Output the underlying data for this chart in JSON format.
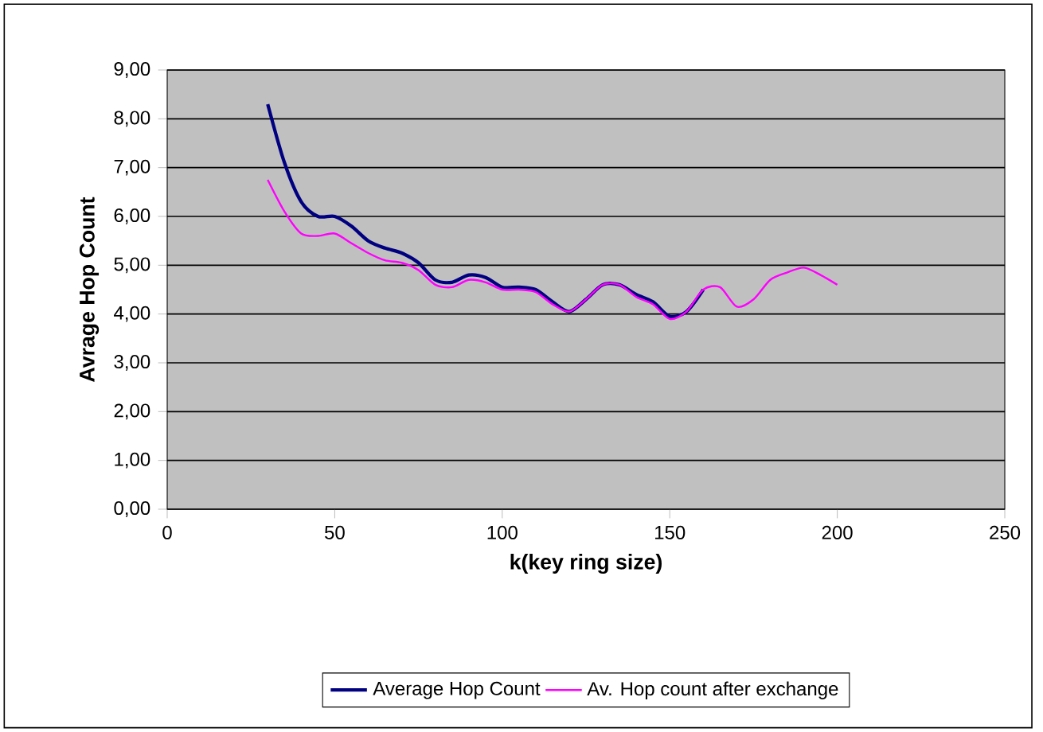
{
  "chart_data": {
    "type": "line",
    "xlabel": "k(key ring size)",
    "ylabel": "Avrage Hop Count",
    "x": [
      30,
      35,
      40,
      45,
      50,
      55,
      60,
      65,
      70,
      75,
      80,
      85,
      90,
      95,
      100,
      105,
      110,
      115,
      120,
      125,
      130,
      135,
      140,
      145,
      150,
      155,
      160,
      165,
      170,
      175,
      180,
      185,
      190,
      195,
      200
    ],
    "series": [
      {
        "name": "Average Hop Count",
        "color": "#000080",
        "values": [
          8.3,
          7.1,
          6.3,
          6.0,
          6.0,
          5.8,
          5.5,
          5.35,
          5.25,
          5.05,
          4.7,
          4.65,
          4.8,
          4.75,
          4.55,
          4.55,
          4.5,
          4.25,
          4.05,
          4.3,
          4.6,
          4.6,
          4.4,
          4.25,
          3.95,
          4.05,
          4.5,
          null,
          null,
          null,
          null,
          null,
          null,
          null,
          null
        ]
      },
      {
        "name": "Av. Hop count after exchange",
        "color": "#ff00ff",
        "values": [
          6.75,
          6.1,
          5.65,
          5.6,
          5.65,
          5.45,
          5.25,
          5.1,
          5.05,
          4.9,
          4.6,
          4.55,
          4.7,
          4.65,
          4.5,
          4.5,
          4.45,
          4.2,
          4.05,
          4.3,
          4.6,
          4.6,
          4.35,
          4.2,
          3.9,
          4.05,
          4.5,
          4.55,
          4.15,
          4.3,
          4.7,
          4.85,
          4.95,
          4.8,
          4.6
        ]
      }
    ],
    "xlim": [
      0,
      250
    ],
    "xticks": [
      0,
      50,
      100,
      150,
      200,
      250
    ],
    "ylim": [
      0,
      9
    ],
    "yticks": [
      {
        "value": 0,
        "label": "0,00"
      },
      {
        "value": 1,
        "label": "1,00"
      },
      {
        "value": 2,
        "label": "2,00"
      },
      {
        "value": 3,
        "label": "3,00"
      },
      {
        "value": 4,
        "label": "4,00"
      },
      {
        "value": 5,
        "label": "5,00"
      },
      {
        "value": 6,
        "label": "6,00"
      },
      {
        "value": 7,
        "label": "7,00"
      },
      {
        "value": 8,
        "label": "8,00"
      },
      {
        "value": 9,
        "label": "9,00"
      }
    ],
    "grid": "y",
    "legend": "bottom",
    "marker": "none",
    "line_style": "solid"
  }
}
